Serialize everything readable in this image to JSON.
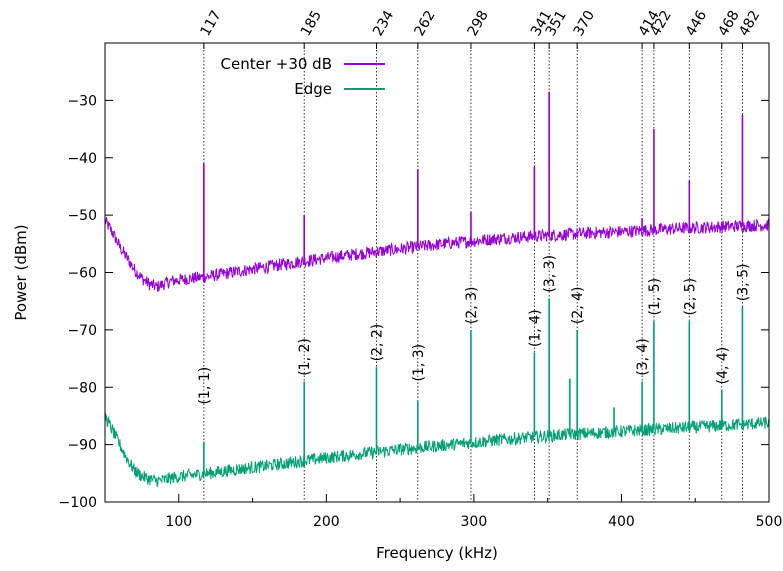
{
  "chart_data": {
    "type": "line",
    "title": "",
    "xlabel": "Frequency (kHz)",
    "ylabel": "Power (dBm)",
    "xlim": [
      50,
      500
    ],
    "ylim": [
      -100,
      -20
    ],
    "xticks": [
      100,
      200,
      300,
      400,
      500
    ],
    "yticks": [
      -100,
      -90,
      -80,
      -70,
      -60,
      -50,
      -40,
      -30
    ],
    "ytick_labels": [
      "−100",
      "−90",
      "−80",
      "−70",
      "−60",
      "−50",
      "−40",
      "−30"
    ],
    "grid": false,
    "legend_position": "top-left",
    "top_axis_labels": [
      117,
      185,
      234,
      262,
      298,
      341,
      351,
      370,
      414,
      422,
      446,
      468,
      482
    ],
    "series": [
      {
        "name": "Center +30 dB",
        "color": "#9400d3",
        "baseline": {
          "x": [
            50,
            55,
            60,
            65,
            70,
            75,
            80,
            85,
            90,
            95,
            100,
            110,
            120,
            140,
            160,
            180,
            200,
            220,
            240,
            260,
            280,
            300,
            320,
            340,
            360,
            380,
            400,
            420,
            440,
            460,
            480,
            500
          ],
          "y": [
            -51,
            -53,
            -55.5,
            -57.5,
            -59.5,
            -61,
            -62,
            -62.5,
            -62,
            -61.5,
            -61.3,
            -61,
            -60.7,
            -59.8,
            -59,
            -58.2,
            -57.5,
            -56.8,
            -56.2,
            -55.6,
            -55,
            -54.5,
            -54,
            -53.7,
            -53.4,
            -53.1,
            -52.9,
            -52.6,
            -52.3,
            -52.1,
            -51.9,
            -51.7
          ]
        },
        "peaks": [
          {
            "x": 117,
            "y": -41
          },
          {
            "x": 185,
            "y": -50
          },
          {
            "x": 262,
            "y": -42
          },
          {
            "x": 298,
            "y": -49.5
          },
          {
            "x": 341,
            "y": -41.5
          },
          {
            "x": 351,
            "y": -28.5
          },
          {
            "x": 414,
            "y": -50.5
          },
          {
            "x": 422,
            "y": -35
          },
          {
            "x": 446,
            "y": -44
          },
          {
            "x": 482,
            "y": -32.5
          }
        ]
      },
      {
        "name": "Edge",
        "color": "#009e73",
        "baseline": {
          "x": [
            50,
            55,
            60,
            65,
            70,
            75,
            80,
            85,
            90,
            95,
            100,
            110,
            120,
            140,
            160,
            180,
            200,
            220,
            240,
            260,
            280,
            300,
            320,
            340,
            360,
            380,
            400,
            420,
            440,
            460,
            480,
            500
          ],
          "y": [
            -85,
            -87.5,
            -90,
            -92.5,
            -94.5,
            -95.5,
            -96,
            -96.3,
            -96.2,
            -95.8,
            -95.6,
            -95.3,
            -95,
            -94.3,
            -93.7,
            -93,
            -92.3,
            -91.7,
            -91.1,
            -90.6,
            -90.1,
            -89.6,
            -89.1,
            -88.7,
            -88.3,
            -88,
            -87.7,
            -87.4,
            -87.1,
            -86.8,
            -86.5,
            -86.2
          ]
        },
        "peaks": [
          {
            "x": 117,
            "y": -89.5
          },
          {
            "x": 185,
            "y": -79
          },
          {
            "x": 234,
            "y": -76.5
          },
          {
            "x": 262,
            "y": -82.5
          },
          {
            "x": 298,
            "y": -70
          },
          {
            "x": 341,
            "y": -74
          },
          {
            "x": 351,
            "y": -64.5
          },
          {
            "x": 365,
            "y": -78.5
          },
          {
            "x": 370,
            "y": -70
          },
          {
            "x": 395,
            "y": -83.5
          },
          {
            "x": 414,
            "y": -79
          },
          {
            "x": 422,
            "y": -68.5
          },
          {
            "x": 446,
            "y": -68.5
          },
          {
            "x": 468,
            "y": -80.5
          },
          {
            "x": 482,
            "y": -66
          }
        ]
      }
    ],
    "mode_labels": [
      {
        "x": 117,
        "text": "(1, 1)",
        "y": -83
      },
      {
        "x": 185,
        "text": "(1, 2)",
        "y": -78
      },
      {
        "x": 234,
        "text": "(2, 2)",
        "y": -75.5
      },
      {
        "x": 262,
        "text": "(1, 3)",
        "y": -79
      },
      {
        "x": 298,
        "text": "(2, 3)",
        "y": -69
      },
      {
        "x": 341,
        "text": "(1, 4)",
        "y": -73
      },
      {
        "x": 351,
        "text": "(3, 3)",
        "y": -63.5
      },
      {
        "x": 370,
        "text": "(2, 4)",
        "y": -69
      },
      {
        "x": 414,
        "text": "(3, 4)",
        "y": -78
      },
      {
        "x": 422,
        "text": "(1, 5)",
        "y": -67.5
      },
      {
        "x": 446,
        "text": "(2, 5)",
        "y": -67.5
      },
      {
        "x": 468,
        "text": "(4, 4)",
        "y": -79.5
      },
      {
        "x": 482,
        "text": "(3, 5)",
        "y": -65
      }
    ]
  }
}
